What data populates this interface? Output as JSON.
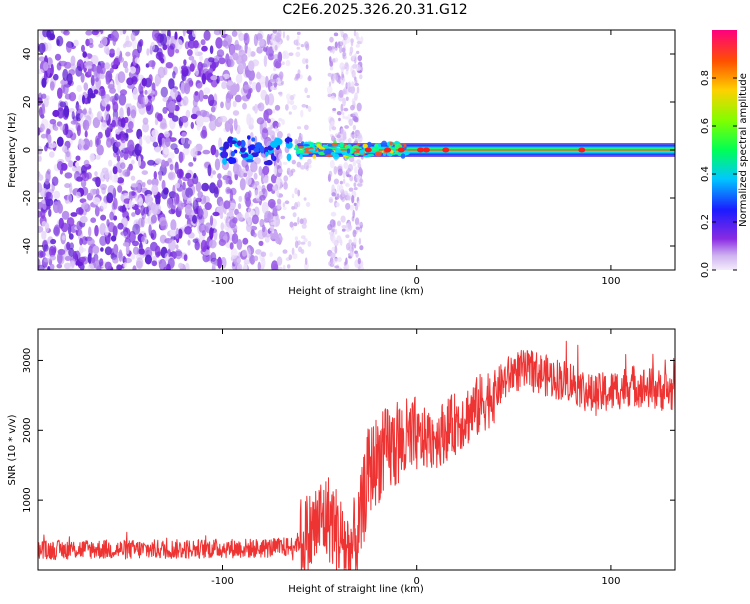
{
  "title": "C2E6.2025.326.20.31.G12",
  "chart_data": [
    {
      "type": "heatmap",
      "name": "spectrogram",
      "xlabel": "Height of straight line (km)",
      "ylabel": "Frequency (Hz)",
      "xlim": [
        -195,
        133
      ],
      "ylim": [
        -50,
        50
      ],
      "xticks": [
        -100,
        0,
        100
      ],
      "yticks": [
        -40,
        -20,
        0,
        20,
        40
      ],
      "colorbar": {
        "label": "Normalized spectral amplitude",
        "range": [
          0,
          1
        ],
        "ticks": [
          0.0,
          0.2,
          0.4,
          0.6,
          0.8
        ]
      },
      "noise_region": {
        "x_from": -195,
        "x_to": -70
      },
      "secondary_noise_band": {
        "x_from": -45,
        "x_to": -28
      },
      "carrier_line": {
        "x_from": -100,
        "x_to": 133,
        "frequency": 0
      },
      "carrier_peaks_x": [
        -25,
        -15,
        -8,
        2,
        5,
        15,
        85
      ]
    },
    {
      "type": "line",
      "name": "snr",
      "xlabel": "Height of straight line (km)",
      "ylabel": "SNR (10 * v/v)",
      "xlim": [
        -195,
        133
      ],
      "ylim": [
        0,
        3450
      ],
      "xticks": [
        -100,
        0,
        100
      ],
      "yticks": [
        1000,
        2000,
        3000
      ],
      "color": "#ee3333",
      "series": [
        {
          "name": "SNR",
          "x": [
            -195,
            -170,
            -150,
            -120,
            -100,
            -80,
            -65,
            -55,
            -50,
            -45,
            -40,
            -35,
            -30,
            -25,
            -20,
            -10,
            0,
            10,
            20,
            30,
            40,
            50,
            60,
            70,
            80,
            90,
            100,
            110,
            120,
            133
          ],
          "y": [
            280,
            300,
            290,
            300,
            310,
            310,
            330,
            500,
            700,
            750,
            500,
            250,
            500,
            1400,
            1600,
            1800,
            1850,
            1900,
            2100,
            2300,
            2550,
            2850,
            2850,
            2750,
            2700,
            2500,
            2550,
            2650,
            2600,
            2550
          ]
        }
      ]
    }
  ]
}
